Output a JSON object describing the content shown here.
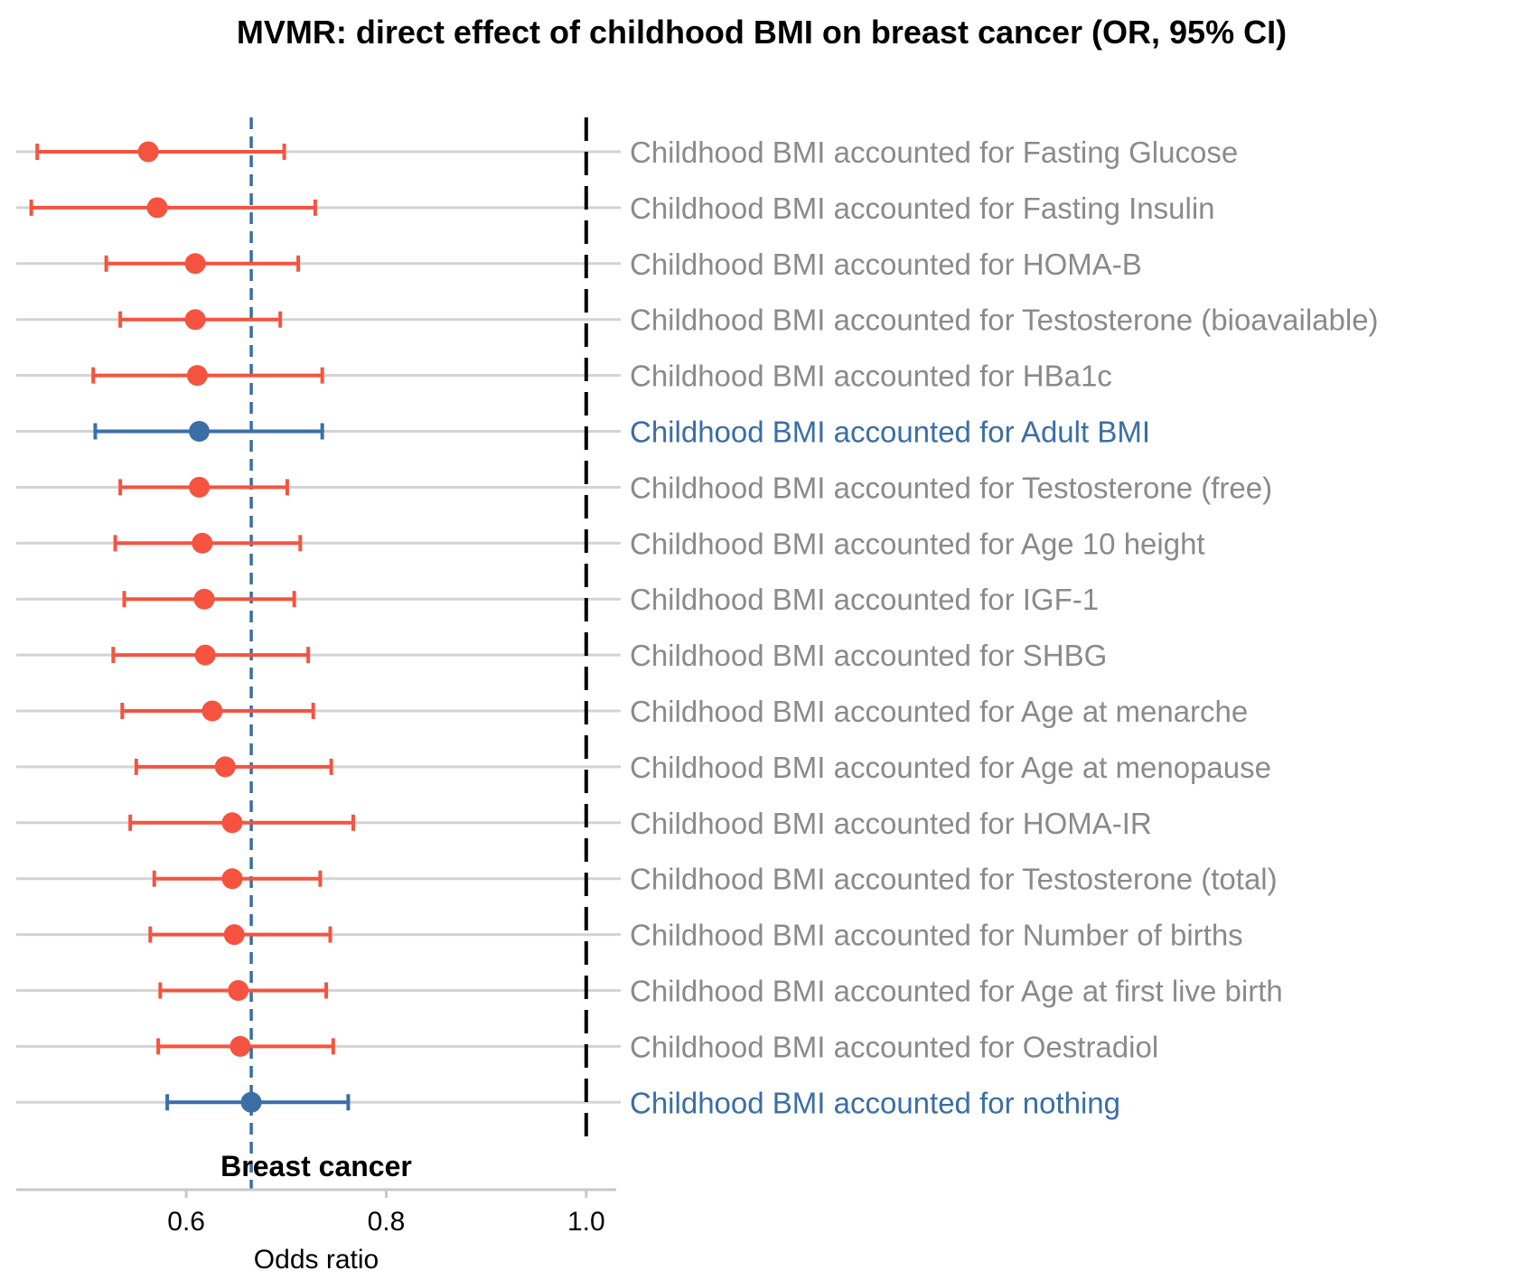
{
  "chart_data": {
    "type": "forest",
    "title": "MVMR: direct effect of childhood BMI on breast cancer (OR, 95% CI)",
    "panel_label": "Breast cancer",
    "xlabel": "Odds ratio",
    "xlim": [
      0.43,
      1.03
    ],
    "xticks": [
      "0.6",
      "0.8",
      "1.0"
    ],
    "xtick_values": [
      0.6,
      0.8,
      1.0
    ],
    "null_line": 1.0,
    "reference_line": 0.665,
    "grid": true,
    "colors": {
      "adjusted": "#f5533f",
      "reference": "#3a6ea5",
      "label_default": "#8a8a8a",
      "gridline": "#d3d3d3",
      "axis": "#c8c8c8",
      "null_line": "#000000"
    },
    "rows": [
      {
        "label": "Childhood BMI accounted for Fasting Glucose",
        "or": 0.562,
        "lower": 0.451,
        "upper": 0.698,
        "group": "adjusted"
      },
      {
        "label": "Childhood BMI accounted for Fasting Insulin",
        "or": 0.571,
        "lower": 0.445,
        "upper": 0.729,
        "group": "adjusted"
      },
      {
        "label": "Childhood BMI accounted for HOMA-B",
        "or": 0.609,
        "lower": 0.52,
        "upper": 0.712,
        "group": "adjusted"
      },
      {
        "label": "Childhood BMI accounted for Testosterone (bioavailable)",
        "or": 0.609,
        "lower": 0.534,
        "upper": 0.694,
        "group": "adjusted"
      },
      {
        "label": "Childhood BMI accounted for HBa1c",
        "or": 0.611,
        "lower": 0.507,
        "upper": 0.736,
        "group": "adjusted"
      },
      {
        "label": "Childhood BMI accounted for Adult BMI",
        "or": 0.613,
        "lower": 0.509,
        "upper": 0.736,
        "group": "reference"
      },
      {
        "label": "Childhood BMI accounted for Testosterone (free)",
        "or": 0.613,
        "lower": 0.534,
        "upper": 0.701,
        "group": "adjusted"
      },
      {
        "label": "Childhood BMI accounted for Age 10 height",
        "or": 0.616,
        "lower": 0.529,
        "upper": 0.714,
        "group": "adjusted"
      },
      {
        "label": "Childhood BMI accounted for IGF-1",
        "or": 0.618,
        "lower": 0.538,
        "upper": 0.708,
        "group": "adjusted"
      },
      {
        "label": "Childhood BMI accounted for SHBG",
        "or": 0.619,
        "lower": 0.527,
        "upper": 0.722,
        "group": "adjusted"
      },
      {
        "label": "Childhood BMI accounted for Age at menarche",
        "or": 0.626,
        "lower": 0.536,
        "upper": 0.727,
        "group": "adjusted"
      },
      {
        "label": "Childhood BMI accounted for Age at menopause",
        "or": 0.639,
        "lower": 0.55,
        "upper": 0.745,
        "group": "adjusted"
      },
      {
        "label": "Childhood BMI accounted for HOMA-IR",
        "or": 0.646,
        "lower": 0.544,
        "upper": 0.767,
        "group": "adjusted"
      },
      {
        "label": "Childhood BMI accounted for Testosterone (total)",
        "or": 0.646,
        "lower": 0.568,
        "upper": 0.734,
        "group": "adjusted"
      },
      {
        "label": "Childhood BMI accounted for Number of births",
        "or": 0.648,
        "lower": 0.564,
        "upper": 0.744,
        "group": "adjusted"
      },
      {
        "label": "Childhood BMI accounted for Age at first live birth",
        "or": 0.652,
        "lower": 0.574,
        "upper": 0.74,
        "group": "adjusted"
      },
      {
        "label": "Childhood BMI accounted for Oestradiol",
        "or": 0.654,
        "lower": 0.572,
        "upper": 0.747,
        "group": "adjusted"
      },
      {
        "label": "Childhood BMI accounted for nothing",
        "or": 0.665,
        "lower": 0.581,
        "upper": 0.762,
        "group": "reference"
      }
    ]
  }
}
